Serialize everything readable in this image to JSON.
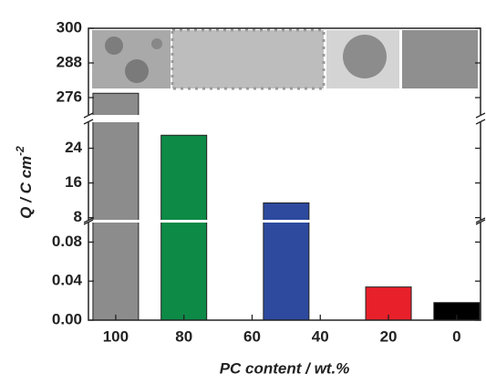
{
  "chart_data": {
    "type": "broken_bar",
    "x_label": "PC content / wt.%",
    "y_label": "Q / C cm",
    "y_label_exponent": "-2",
    "x": [
      100,
      80,
      50,
      20,
      0
    ],
    "values": [
      277.5,
      27,
      11.4,
      0.034,
      0.018
    ],
    "colors": [
      "#8c8c8c",
      "#0e8a47",
      "#2d4a9e",
      "#e8202a",
      "#000000"
    ],
    "xlim": [
      108,
      -7
    ],
    "xticks": [
      100,
      80,
      60,
      40,
      20,
      0
    ],
    "y_segments": [
      {
        "ylim": [
          0,
          0.1
        ],
        "yticks": [
          {
            "value": 0,
            "label": "0.00"
          },
          {
            "value": 0.04,
            "label": "0.04"
          },
          {
            "value": 0.08,
            "label": "0.08"
          }
        ]
      },
      {
        "ylim": [
          7.5,
          30
        ],
        "yticks": [
          8,
          16,
          24
        ]
      },
      {
        "ylim": [
          270,
          300
        ],
        "yticks": [
          276,
          288,
          300
        ]
      }
    ]
  }
}
